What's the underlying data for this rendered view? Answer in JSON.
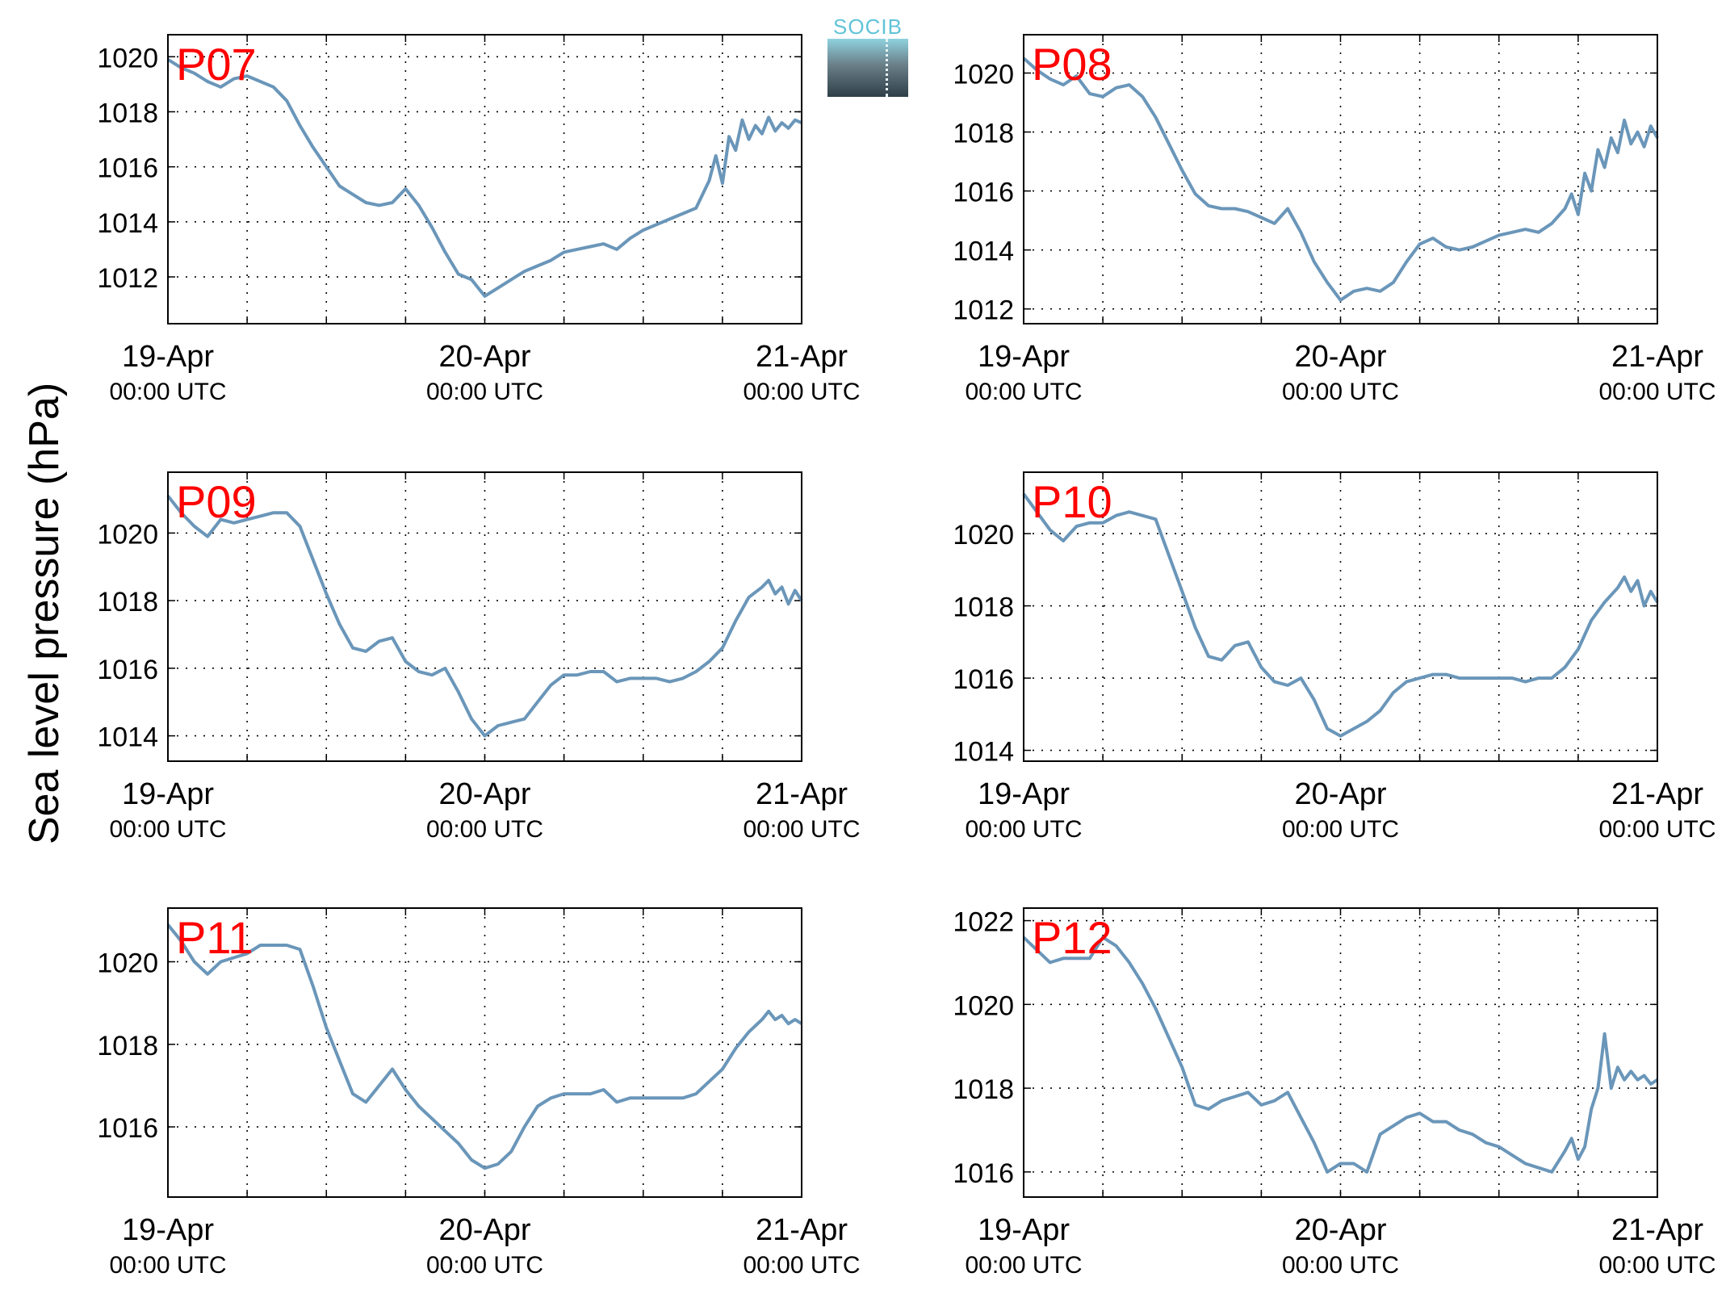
{
  "figure": {
    "ylabel": "Sea level pressure (hPa)",
    "logo_text": "SOCIB",
    "line_color": "#6a96b9",
    "label_color": "#ff0000"
  },
  "chart_data": [
    {
      "type": "line",
      "label": "P07",
      "xlim": [
        "19-Apr 00:00 UTC",
        "21-Apr 00:00 UTC"
      ],
      "ylim": [
        1010.3,
        1020.8
      ],
      "yticks": [
        1012,
        1014,
        1016,
        1018,
        1020
      ],
      "xtick_labels": [
        [
          "19-Apr",
          "00:00 UTC"
        ],
        [
          "20-Apr",
          "00:00 UTC"
        ],
        [
          "21-Apr",
          "00:00 UTC"
        ]
      ],
      "grid": true,
      "series": [
        {
          "x_hours": [
            0,
            1,
            2,
            3,
            4,
            5,
            6,
            7,
            8,
            9,
            10,
            11,
            12,
            13,
            14,
            15,
            16,
            17,
            18,
            19,
            20,
            21,
            22,
            23,
            24,
            25,
            26,
            27,
            28,
            29,
            30,
            31,
            32,
            33,
            34,
            35,
            36,
            37,
            38,
            39,
            40,
            41,
            41.5,
            42,
            42.5,
            43,
            43.5,
            44,
            44.5,
            45,
            45.5,
            46,
            46.5,
            47,
            47.5,
            48
          ],
          "y": [
            1019.9,
            1019.6,
            1019.4,
            1019.1,
            1018.9,
            1019.2,
            1019.3,
            1019.1,
            1018.9,
            1018.4,
            1017.5,
            1016.7,
            1016.0,
            1015.3,
            1015.0,
            1014.7,
            1014.6,
            1014.7,
            1015.2,
            1014.6,
            1013.8,
            1012.9,
            1012.1,
            1011.9,
            1011.3,
            1011.6,
            1011.9,
            1012.2,
            1012.4,
            1012.6,
            1012.9,
            1013.0,
            1013.1,
            1013.2,
            1013.0,
            1013.4,
            1013.7,
            1013.9,
            1014.1,
            1014.3,
            1014.5,
            1015.5,
            1016.4,
            1015.4,
            1017.1,
            1016.6,
            1017.7,
            1017.0,
            1017.5,
            1017.2,
            1017.8,
            1017.3,
            1017.6,
            1017.4,
            1017.7,
            1017.6
          ]
        }
      ]
    },
    {
      "type": "line",
      "label": "P08",
      "xlim": [
        "19-Apr 00:00 UTC",
        "21-Apr 00:00 UTC"
      ],
      "ylim": [
        1011.5,
        1021.3
      ],
      "yticks": [
        1012,
        1014,
        1016,
        1018,
        1020
      ],
      "xtick_labels": [
        [
          "19-Apr",
          "00:00 UTC"
        ],
        [
          "20-Apr",
          "00:00 UTC"
        ],
        [
          "21-Apr",
          "00:00 UTC"
        ]
      ],
      "grid": true,
      "series": [
        {
          "x_hours": [
            0,
            1,
            2,
            3,
            4,
            5,
            6,
            7,
            8,
            9,
            10,
            11,
            12,
            13,
            14,
            15,
            16,
            17,
            18,
            19,
            20,
            21,
            22,
            23,
            24,
            25,
            26,
            27,
            28,
            29,
            30,
            31,
            32,
            33,
            34,
            35,
            36,
            37,
            38,
            39,
            40,
            41,
            41.5,
            42,
            42.5,
            43,
            43.5,
            44,
            44.5,
            45,
            45.5,
            46,
            46.5,
            47,
            47.5,
            48
          ],
          "y": [
            1020.5,
            1020.1,
            1019.8,
            1019.6,
            1019.9,
            1019.3,
            1019.2,
            1019.5,
            1019.6,
            1019.2,
            1018.5,
            1017.6,
            1016.7,
            1015.9,
            1015.5,
            1015.4,
            1015.4,
            1015.3,
            1015.1,
            1014.9,
            1015.4,
            1014.6,
            1013.6,
            1012.9,
            1012.3,
            1012.6,
            1012.7,
            1012.6,
            1012.9,
            1013.6,
            1014.2,
            1014.4,
            1014.1,
            1014.0,
            1014.1,
            1014.3,
            1014.5,
            1014.6,
            1014.7,
            1014.6,
            1014.9,
            1015.4,
            1015.9,
            1015.2,
            1016.6,
            1016.0,
            1017.4,
            1016.8,
            1017.8,
            1017.3,
            1018.4,
            1017.6,
            1018.0,
            1017.5,
            1018.2,
            1017.8
          ]
        }
      ]
    },
    {
      "type": "line",
      "label": "P09",
      "xlim": [
        "19-Apr 00:00 UTC",
        "21-Apr 00:00 UTC"
      ],
      "ylim": [
        1013.25,
        1021.8
      ],
      "yticks": [
        1014,
        1016,
        1018,
        1020
      ],
      "xtick_labels": [
        [
          "19-Apr",
          "00:00 UTC"
        ],
        [
          "20-Apr",
          "00:00 UTC"
        ],
        [
          "21-Apr",
          "00:00 UTC"
        ]
      ],
      "grid": true,
      "series": [
        {
          "x_hours": [
            0,
            1,
            2,
            3,
            4,
            5,
            6,
            7,
            8,
            9,
            10,
            11,
            12,
            13,
            14,
            15,
            16,
            17,
            18,
            19,
            20,
            21,
            22,
            23,
            24,
            25,
            26,
            27,
            28,
            29,
            30,
            31,
            32,
            33,
            34,
            35,
            36,
            37,
            38,
            39,
            40,
            41,
            42,
            43,
            44,
            45,
            45.5,
            46,
            46.5,
            47,
            47.5,
            48
          ],
          "y": [
            1021.1,
            1020.6,
            1020.2,
            1019.9,
            1020.4,
            1020.3,
            1020.4,
            1020.5,
            1020.6,
            1020.6,
            1020.2,
            1019.2,
            1018.2,
            1017.3,
            1016.6,
            1016.5,
            1016.8,
            1016.9,
            1016.2,
            1015.9,
            1015.8,
            1016.0,
            1015.3,
            1014.5,
            1014.0,
            1014.3,
            1014.4,
            1014.5,
            1015.0,
            1015.5,
            1015.8,
            1015.8,
            1015.9,
            1015.9,
            1015.6,
            1015.7,
            1015.7,
            1015.7,
            1015.6,
            1015.7,
            1015.9,
            1016.2,
            1016.6,
            1017.4,
            1018.1,
            1018.4,
            1018.6,
            1018.2,
            1018.4,
            1017.9,
            1018.3,
            1018.0
          ]
        }
      ]
    },
    {
      "type": "line",
      "label": "P10",
      "xlim": [
        "19-Apr 00:00 UTC",
        "21-Apr 00:00 UTC"
      ],
      "ylim": [
        1013.7,
        1021.7
      ],
      "yticks": [
        1014,
        1016,
        1018,
        1020
      ],
      "xtick_labels": [
        [
          "19-Apr",
          "00:00 UTC"
        ],
        [
          "20-Apr",
          "00:00 UTC"
        ],
        [
          "21-Apr",
          "00:00 UTC"
        ]
      ],
      "grid": true,
      "series": [
        {
          "x_hours": [
            0,
            1,
            2,
            3,
            4,
            5,
            6,
            7,
            8,
            9,
            10,
            11,
            12,
            13,
            14,
            15,
            16,
            17,
            18,
            19,
            20,
            21,
            22,
            23,
            24,
            25,
            26,
            27,
            28,
            29,
            30,
            31,
            32,
            33,
            34,
            35,
            36,
            37,
            38,
            39,
            40,
            41,
            42,
            43,
            44,
            45,
            45.5,
            46,
            46.5,
            47,
            47.5,
            48
          ],
          "y": [
            1021.1,
            1020.6,
            1020.1,
            1019.8,
            1020.2,
            1020.3,
            1020.3,
            1020.5,
            1020.6,
            1020.5,
            1020.4,
            1019.4,
            1018.4,
            1017.4,
            1016.6,
            1016.5,
            1016.9,
            1017.0,
            1016.3,
            1015.9,
            1015.8,
            1016.0,
            1015.4,
            1014.6,
            1014.4,
            1014.6,
            1014.8,
            1015.1,
            1015.6,
            1015.9,
            1016.0,
            1016.1,
            1016.1,
            1016.0,
            1016.0,
            1016.0,
            1016.0,
            1016.0,
            1015.9,
            1016.0,
            1016.0,
            1016.3,
            1016.8,
            1017.6,
            1018.1,
            1018.5,
            1018.8,
            1018.4,
            1018.7,
            1018.0,
            1018.4,
            1018.1
          ]
        }
      ]
    },
    {
      "type": "line",
      "label": "P11",
      "xlim": [
        "19-Apr 00:00 UTC",
        "21-Apr 00:00 UTC"
      ],
      "ylim": [
        1014.3,
        1021.3
      ],
      "yticks": [
        1016,
        1018,
        1020
      ],
      "xtick_labels": [
        [
          "19-Apr",
          "00:00 UTC"
        ],
        [
          "20-Apr",
          "00:00 UTC"
        ],
        [
          "21-Apr",
          "00:00 UTC"
        ]
      ],
      "grid": true,
      "series": [
        {
          "x_hours": [
            0,
            1,
            2,
            3,
            4,
            5,
            6,
            7,
            8,
            9,
            10,
            11,
            12,
            13,
            14,
            15,
            16,
            17,
            18,
            19,
            20,
            21,
            22,
            23,
            24,
            25,
            26,
            27,
            28,
            29,
            30,
            31,
            32,
            33,
            34,
            35,
            36,
            37,
            38,
            39,
            40,
            41,
            42,
            43,
            44,
            45,
            45.5,
            46,
            46.5,
            47,
            47.5,
            48
          ],
          "y": [
            1020.9,
            1020.5,
            1020.0,
            1019.7,
            1020.0,
            1020.1,
            1020.2,
            1020.4,
            1020.4,
            1020.4,
            1020.3,
            1019.4,
            1018.4,
            1017.6,
            1016.8,
            1016.6,
            1017.0,
            1017.4,
            1016.9,
            1016.5,
            1016.2,
            1015.9,
            1015.6,
            1015.2,
            1015.0,
            1015.1,
            1015.4,
            1016.0,
            1016.5,
            1016.7,
            1016.8,
            1016.8,
            1016.8,
            1016.9,
            1016.6,
            1016.7,
            1016.7,
            1016.7,
            1016.7,
            1016.7,
            1016.8,
            1017.1,
            1017.4,
            1017.9,
            1018.3,
            1018.6,
            1018.8,
            1018.6,
            1018.7,
            1018.5,
            1018.6,
            1018.5
          ]
        }
      ]
    },
    {
      "type": "line",
      "label": "P12",
      "xlim": [
        "19-Apr 00:00 UTC",
        "21-Apr 00:00 UTC"
      ],
      "ylim": [
        1015.4,
        1022.3
      ],
      "yticks": [
        1016,
        1018,
        1020,
        1022
      ],
      "xtick_labels": [
        [
          "19-Apr",
          "00:00 UTC"
        ],
        [
          "20-Apr",
          "00:00 UTC"
        ],
        [
          "21-Apr",
          "00:00 UTC"
        ]
      ],
      "grid": true,
      "series": [
        {
          "x_hours": [
            0,
            1,
            2,
            3,
            4,
            5,
            6,
            7,
            8,
            9,
            10,
            11,
            12,
            13,
            14,
            15,
            16,
            17,
            18,
            19,
            20,
            21,
            22,
            23,
            24,
            25,
            26,
            27,
            28,
            29,
            30,
            31,
            32,
            33,
            34,
            35,
            36,
            37,
            38,
            39,
            40,
            41,
            41.5,
            42,
            42.5,
            43,
            43.5,
            44,
            44.5,
            45,
            45.5,
            46,
            46.5,
            47,
            47.5,
            48
          ],
          "y": [
            1021.6,
            1021.3,
            1021.0,
            1021.1,
            1021.1,
            1021.1,
            1021.6,
            1021.4,
            1021.0,
            1020.5,
            1019.9,
            1019.2,
            1018.5,
            1017.6,
            1017.5,
            1017.7,
            1017.8,
            1017.9,
            1017.6,
            1017.7,
            1017.9,
            1017.3,
            1016.7,
            1016.0,
            1016.2,
            1016.2,
            1016.0,
            1016.9,
            1017.1,
            1017.3,
            1017.4,
            1017.2,
            1017.2,
            1017.0,
            1016.9,
            1016.7,
            1016.6,
            1016.4,
            1016.2,
            1016.1,
            1016.0,
            1016.5,
            1016.8,
            1016.3,
            1016.6,
            1017.5,
            1018.0,
            1019.3,
            1018.0,
            1018.5,
            1018.2,
            1018.4,
            1018.2,
            1018.3,
            1018.1,
            1018.2
          ]
        }
      ]
    }
  ]
}
